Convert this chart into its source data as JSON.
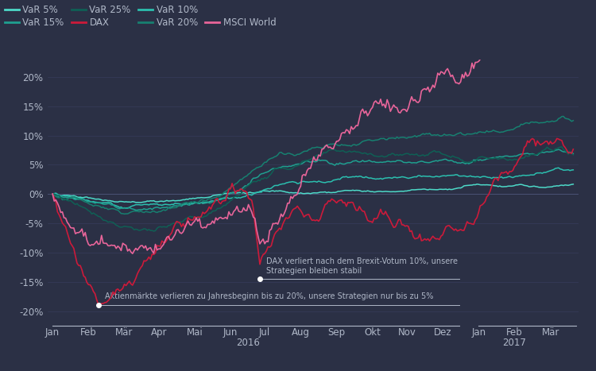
{
  "bg_color": "#2b3045",
  "plot_bg_color": "#2b3045",
  "text_color": "#b0b8c8",
  "grid_color": "#3a4060",
  "zero_line_color": "#4a5275",
  "colors": {
    "var5": "#4dd9c8",
    "var10": "#2bbfaf",
    "var15": "#1fa090",
    "var20": "#178070",
    "var25": "#0f6055",
    "dax": "#cc1a3a",
    "msci": "#e8659a"
  },
  "ylim": [
    -0.22,
    0.23
  ],
  "yticks": [
    -0.2,
    -0.15,
    -0.1,
    -0.05,
    0.0,
    0.05,
    0.1,
    0.15,
    0.2
  ],
  "ytick_labels": [
    "-20%",
    "-15%",
    "-10%",
    "-5%",
    "0%",
    "5%",
    "10%",
    "15%",
    "20%"
  ],
  "annotation1_text": "Aktienmärkte verlieren zu Jahresbeginn bis zu 20%, unsere Strategien nur bis zu 5%",
  "annotation2_text": "DAX verliert nach dem Brexit-Votum 10%, unsere\nStrategien bleiben stabil",
  "legend_row1": [
    "VaR 5%",
    "VaR 15%",
    "VaR 25%",
    "DAX"
  ],
  "legend_row2": [
    "VaR 10%",
    "VaR 20%",
    "",
    "MSCI World"
  ]
}
